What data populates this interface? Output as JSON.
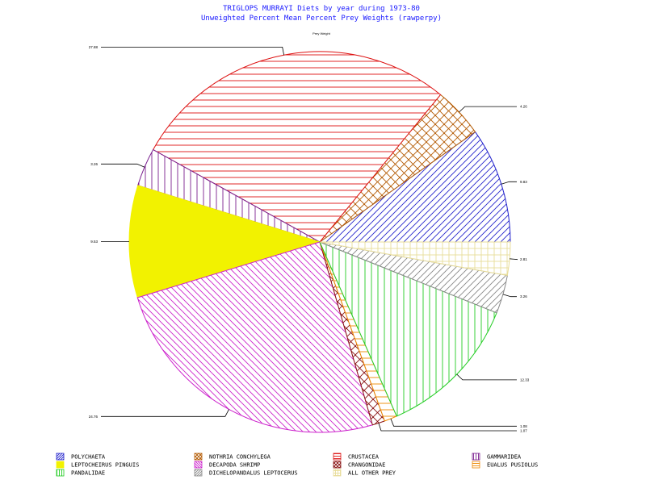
{
  "chart_data": {
    "type": "pie",
    "title": "TRIGLOPS MURRAYI Diets by year during 1973-80",
    "subtitle": "Unweighted Percent Mean Percent Prey  Weights (rawperpy)",
    "total_label": "Prey Weight",
    "legend_position": "bottom",
    "slices": [
      {
        "name": "POLYCHAETA",
        "value": 9.83,
        "label": "9.83",
        "color": "#2222cc",
        "pattern": "diag-fwd",
        "show_in_legend": true
      },
      {
        "name": "NOTHRIA CONCHYLEGA",
        "value": 4.26,
        "label": "4.26",
        "color": "#b35900",
        "pattern": "crosshatch",
        "show_in_legend": true
      },
      {
        "name": "CRUSTACEA",
        "value": 27.88,
        "label": "27.88",
        "color": "#dd1111",
        "pattern": "horizontal",
        "show_in_legend": true
      },
      {
        "name": "GAMMARIDEA",
        "value": 3.26,
        "label": "3.26",
        "color": "#7a1f8f",
        "pattern": "vertical",
        "show_in_legend": true
      },
      {
        "name": "LEPTOCHEIRUS PINGUIS",
        "value": 9.53,
        "label": "9.53",
        "color": "#f2f200",
        "pattern": "solid",
        "show_in_legend": true
      },
      {
        "name": "DECAPODA SHRIMP",
        "value": 24.76,
        "label": "24.76",
        "color": "#cc22cc",
        "pattern": "diag-back",
        "show_in_legend": true
      },
      {
        "name": "CRANGONIDAE",
        "value": 1.07,
        "label": "1.07",
        "color": "#881111",
        "pattern": "crosshatch",
        "show_in_legend": true
      },
      {
        "name": "EUALUS PUSIOLUS",
        "value": 1.08,
        "label": "1.08",
        "color": "#ee8800",
        "pattern": "horizontal",
        "show_in_legend": true
      },
      {
        "name": "PANDALIDAE",
        "value": 12.33,
        "label": "12.33",
        "color": "#22cc22",
        "pattern": "vertical",
        "show_in_legend": true
      },
      {
        "name": "DICHELOPANDALUS LEPTOCERUS",
        "value": 3.26,
        "label": "3.26",
        "color": "#888888",
        "pattern": "diag-fwd",
        "show_in_legend": true
      },
      {
        "name": "ALL OTHER PREY",
        "value": 2.81,
        "label": "2.81",
        "color": "#e8dd99",
        "pattern": "grid",
        "show_in_legend": true
      }
    ],
    "legend_order": [
      "POLYCHAETA",
      "NOTHRIA CONCHYLEGA",
      "CRUSTACEA",
      "GAMMARIDEA",
      "LEPTOCHEIRUS PINGUIS",
      "DECAPODA SHRIMP",
      "CRANGONIDAE",
      "EUALUS PUSIOLUS",
      "PANDALIDAE",
      "DICHELOPANDALUS LEPTOCERUS",
      "ALL OTHER PREY"
    ]
  }
}
